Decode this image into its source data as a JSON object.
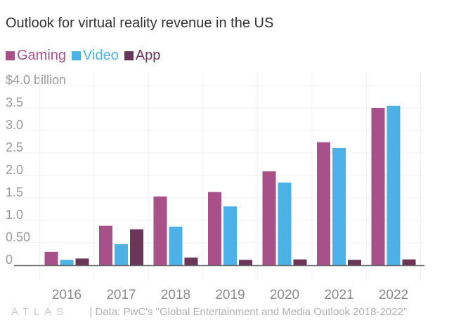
{
  "title": "Outlook for virtual reality revenue in the US",
  "colors": {
    "Gaming": "#a8508a",
    "Video": "#4cb1e6",
    "App": "#6b3558"
  },
  "chart_data": {
    "type": "bar",
    "title": "Outlook for virtual reality revenue in the US",
    "xlabel": "",
    "ylabel": "",
    "categories": [
      "2016",
      "2017",
      "2018",
      "2019",
      "2020",
      "2021",
      "2022"
    ],
    "series": [
      {
        "name": "Gaming",
        "values": [
          0.3,
          0.88,
          1.53,
          1.63,
          2.09,
          2.74,
          3.5
        ]
      },
      {
        "name": "Video",
        "values": [
          0.12,
          0.47,
          0.86,
          1.31,
          1.84,
          2.61,
          3.55
        ]
      },
      {
        "name": "App",
        "values": [
          0.15,
          0.8,
          0.17,
          0.12,
          0.13,
          0.12,
          0.13
        ]
      }
    ],
    "ylim": [
      0,
      4.0
    ],
    "yticks": [
      0,
      0.5,
      1.0,
      1.5,
      2.0,
      2.5,
      3.0,
      3.5,
      4.0
    ],
    "ytick_labels": [
      "0",
      "0.50",
      "1.0",
      "1.5",
      "2.0",
      "2.5",
      "3.0",
      "3.5",
      "$4.0 billion"
    ],
    "grid": true,
    "legend": "top-left"
  },
  "footer": {
    "logo": "ATLAS",
    "source": "| Data: PwC's \"Global Entertainment and Media Outlook 2018-2022\""
  }
}
